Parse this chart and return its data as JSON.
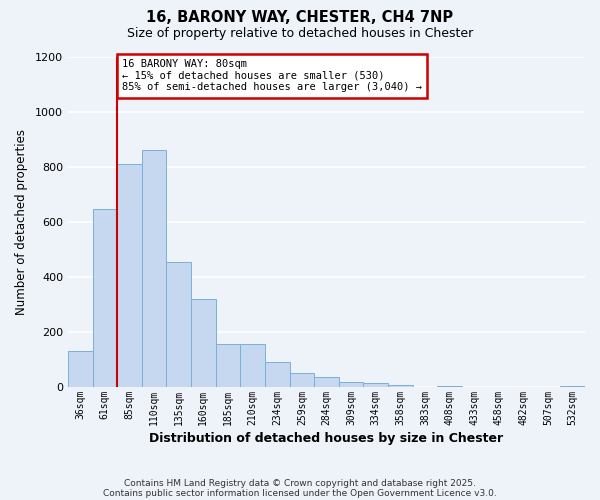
{
  "title": "16, BARONY WAY, CHESTER, CH4 7NP",
  "subtitle": "Size of property relative to detached houses in Chester",
  "xlabel": "Distribution of detached houses by size in Chester",
  "ylabel": "Number of detached properties",
  "bar_color": "#c5d8f0",
  "bar_edge_color": "#7ab0d8",
  "background_color": "#eef2f9",
  "grid_color": "#ffffff",
  "categories": [
    "36sqm",
    "61sqm",
    "85sqm",
    "110sqm",
    "135sqm",
    "160sqm",
    "185sqm",
    "210sqm",
    "234sqm",
    "259sqm",
    "284sqm",
    "309sqm",
    "334sqm",
    "358sqm",
    "383sqm",
    "408sqm",
    "433sqm",
    "458sqm",
    "482sqm",
    "507sqm",
    "532sqm"
  ],
  "values": [
    130,
    645,
    810,
    860,
    455,
    320,
    155,
    155,
    90,
    50,
    38,
    20,
    15,
    7,
    0,
    3,
    0,
    0,
    0,
    0,
    5
  ],
  "ylim": [
    0,
    1200
  ],
  "yticks": [
    0,
    200,
    400,
    600,
    800,
    1000,
    1200
  ],
  "property_line_x": 1.5,
  "annotation_title": "16 BARONY WAY: 80sqm",
  "annotation_line1": "← 15% of detached houses are smaller (530)",
  "annotation_line2": "85% of semi-detached houses are larger (3,040) →",
  "annotation_box_color": "#ffffff",
  "annotation_box_edge_color": "#cc0000",
  "vline_color": "#cc0000",
  "footer1": "Contains HM Land Registry data © Crown copyright and database right 2025.",
  "footer2": "Contains public sector information licensed under the Open Government Licence v3.0."
}
